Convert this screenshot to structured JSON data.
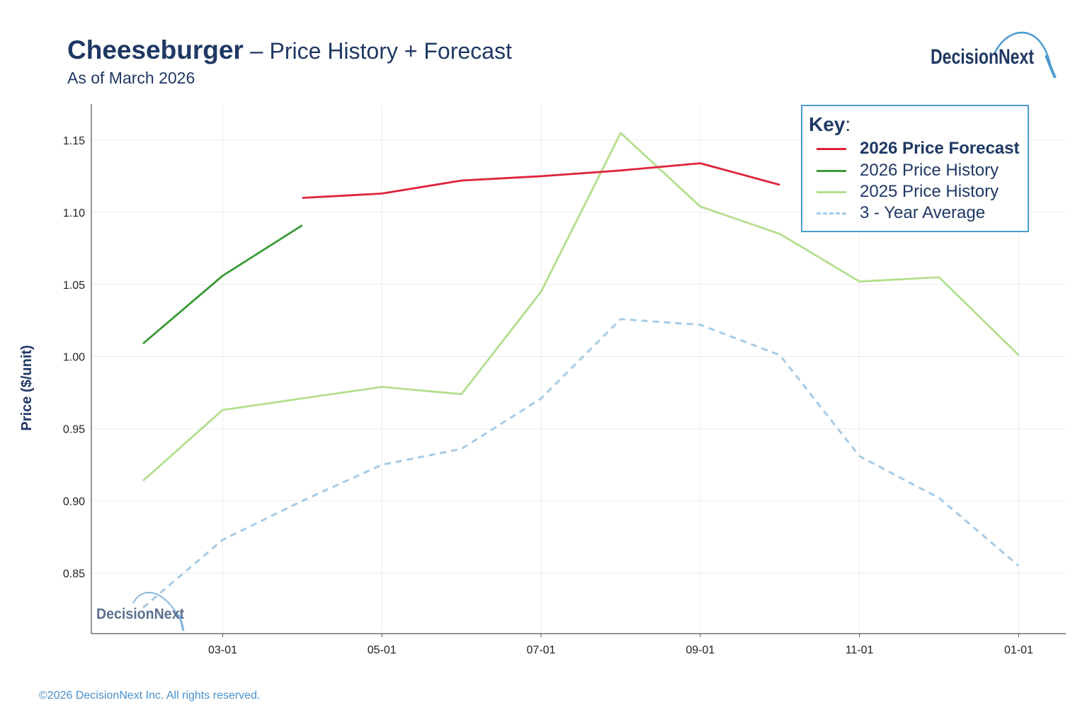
{
  "header": {
    "product": "Cheeseburger",
    "dash": " – ",
    "subtitle": "Price History + Forecast",
    "as_of": "As of March 2026",
    "logo_text": "DecisionNext"
  },
  "footer": {
    "copyright": "©2026 DecisionNext Inc. All rights reserved."
  },
  "legend": {
    "title": "Key",
    "colon": ":",
    "items": [
      {
        "label": "2026 Price Forecast",
        "color": "#e0223a",
        "style": "solid",
        "bold": true
      },
      {
        "label": "2026 Price History",
        "color": "#3a9a35",
        "style": "solid",
        "bold": false
      },
      {
        "label": "2025 Price History",
        "color": "#b4de8e",
        "style": "solid",
        "bold": false
      },
      {
        "label": "3 - Year Average",
        "color": "#a6cbe6",
        "style": "dashed",
        "bold": false
      }
    ]
  },
  "chart_data": {
    "type": "line",
    "title": "Cheeseburger – Price History + Forecast",
    "xlabel": "",
    "ylabel": "Price  ($/unit)",
    "x": [
      "02-01",
      "03-01",
      "04-01",
      "05-01",
      "06-01",
      "07-01",
      "08-01",
      "09-01",
      "10-01",
      "11-01",
      "12-01",
      "01-01"
    ],
    "x_tick_labels": [
      "03-01",
      "05-01",
      "07-01",
      "09-01",
      "11-01",
      "01-01"
    ],
    "y_ticks": [
      "0.85",
      "0.90",
      "0.95",
      "1.00",
      "1.05",
      "1.10",
      "1.15"
    ],
    "ylim": [
      0.808,
      1.175
    ],
    "legend_position": "top-right",
    "series": [
      {
        "name": "2026 Price Forecast",
        "color": "#e0223a",
        "dashed": false,
        "values": [
          null,
          null,
          1.11,
          1.113,
          1.122,
          1.125,
          1.129,
          1.134,
          1.119,
          null,
          null,
          null
        ]
      },
      {
        "name": "2026 Price History",
        "color": "#3a9a35",
        "dashed": false,
        "values": [
          1.009,
          1.056,
          1.091,
          null,
          null,
          null,
          null,
          null,
          null,
          null,
          null,
          null
        ]
      },
      {
        "name": "2025 Price History",
        "color": "#b4de8e",
        "dashed": false,
        "values": [
          0.914,
          0.963,
          0.971,
          0.979,
          0.974,
          1.045,
          1.155,
          1.104,
          1.085,
          1.052,
          1.055,
          1.001
        ]
      },
      {
        "name": "3 - Year Average",
        "color": "#a6cbe6",
        "dashed": true,
        "values": [
          0.826,
          0.873,
          0.9,
          0.925,
          0.936,
          0.971,
          1.026,
          1.022,
          1.001,
          0.931,
          0.902,
          0.855
        ]
      }
    ]
  }
}
